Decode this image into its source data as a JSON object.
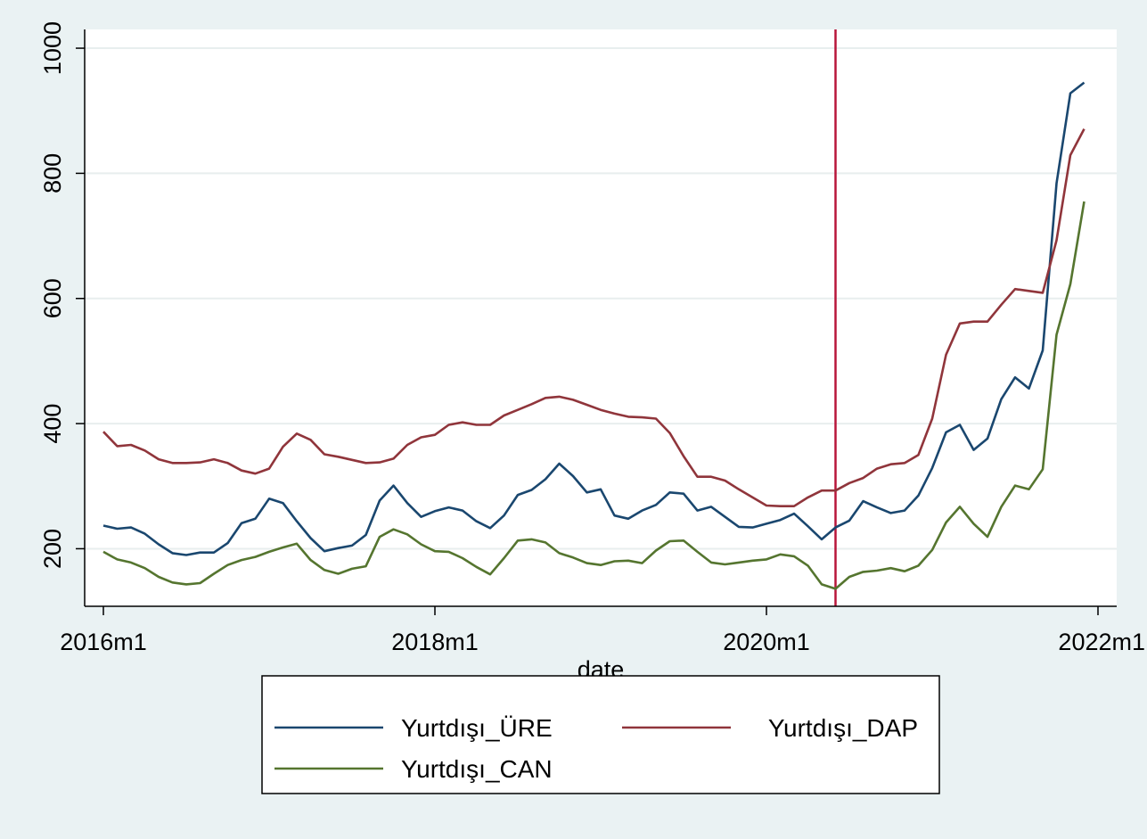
{
  "chart_data": {
    "type": "line",
    "title": "",
    "xlabel": "date",
    "ylabel": "",
    "x_tick_labels": [
      "2016m1",
      "2018m1",
      "2020m1",
      "2022m1"
    ],
    "x_ticks": [
      "2016-01",
      "2018-01",
      "2020-01",
      "2022-01"
    ],
    "x_range": [
      "2016-01",
      "2022-01"
    ],
    "y_ticks": [
      200,
      400,
      600,
      800,
      1000
    ],
    "y_tick_labels": [
      "200",
      "400",
      "600",
      "800",
      "1000"
    ],
    "ylim": [
      108,
      1030
    ],
    "grid": true,
    "legend_position": "bottom",
    "vertical_line": {
      "x": "2020-06",
      "color": "#b8163a"
    },
    "colors": {
      "background": "#eaf2f3",
      "plot_background": "#ffffff",
      "grid": "#e8eeee",
      "axis": "#000000"
    },
    "x": [
      "2016-01",
      "2016-02",
      "2016-03",
      "2016-04",
      "2016-05",
      "2016-06",
      "2016-07",
      "2016-08",
      "2016-09",
      "2016-10",
      "2016-11",
      "2016-12",
      "2017-01",
      "2017-02",
      "2017-03",
      "2017-04",
      "2017-05",
      "2017-06",
      "2017-07",
      "2017-08",
      "2017-09",
      "2017-10",
      "2017-11",
      "2017-12",
      "2018-01",
      "2018-02",
      "2018-03",
      "2018-04",
      "2018-05",
      "2018-06",
      "2018-07",
      "2018-08",
      "2018-09",
      "2018-10",
      "2018-11",
      "2018-12",
      "2019-01",
      "2019-02",
      "2019-03",
      "2019-04",
      "2019-05",
      "2019-06",
      "2019-07",
      "2019-08",
      "2019-09",
      "2019-10",
      "2019-11",
      "2019-12",
      "2020-01",
      "2020-02",
      "2020-03",
      "2020-04",
      "2020-05",
      "2020-06",
      "2020-07",
      "2020-08",
      "2020-09",
      "2020-10",
      "2020-11",
      "2020-12",
      "2021-01",
      "2021-02",
      "2021-03",
      "2021-04",
      "2021-05",
      "2021-06",
      "2021-07",
      "2021-08",
      "2021-09",
      "2021-10",
      "2021-11",
      "2021-12"
    ],
    "series": [
      {
        "name": "Yurtdışı_ÜRE",
        "color": "#1a476f",
        "values": [
          237,
          232,
          234,
          224,
          207,
          193,
          190,
          194,
          194,
          209,
          241,
          248,
          280,
          273,
          244,
          217,
          196,
          201,
          205,
          222,
          277,
          301,
          273,
          251,
          260,
          266,
          261,
          244,
          233,
          253,
          286,
          294,
          311,
          336,
          316,
          290,
          295,
          253,
          248,
          261,
          270,
          290,
          288,
          261,
          267,
          251,
          235,
          234,
          240,
          246,
          256,
          236,
          215,
          234,
          245,
          276,
          266,
          257,
          261,
          285,
          329,
          386,
          398,
          358,
          376,
          439,
          474,
          456,
          517,
          784,
          928,
          945
        ]
      },
      {
        "name": "Yurtdışı_DAP",
        "color": "#90353b",
        "values": [
          387,
          364,
          366,
          357,
          343,
          337,
          337,
          338,
          343,
          337,
          325,
          320,
          328,
          363,
          384,
          374,
          351,
          347,
          342,
          337,
          338,
          344,
          366,
          378,
          382,
          398,
          402,
          398,
          398,
          413,
          422,
          431,
          441,
          443,
          438,
          430,
          422,
          416,
          411,
          410,
          408,
          385,
          348,
          315,
          315,
          309,
          295,
          282,
          269,
          268,
          268,
          282,
          293,
          293,
          305,
          313,
          328,
          335,
          337,
          350,
          408,
          510,
          560,
          563,
          563,
          590,
          615,
          612,
          609,
          693,
          829,
          871
        ]
      },
      {
        "name": "Yurtdışı_CAN",
        "color": "#55752f",
        "values": [
          195,
          183,
          178,
          169,
          155,
          146,
          143,
          145,
          160,
          174,
          182,
          187,
          195,
          202,
          208,
          182,
          166,
          160,
          168,
          172,
          219,
          231,
          223,
          207,
          196,
          195,
          185,
          171,
          159,
          185,
          213,
          215,
          210,
          193,
          186,
          177,
          174,
          180,
          181,
          177,
          197,
          212,
          213,
          195,
          178,
          175,
          178,
          181,
          183,
          191,
          188,
          173,
          143,
          136,
          155,
          163,
          165,
          169,
          164,
          173,
          198,
          242,
          267,
          240,
          219,
          267,
          301,
          295,
          327,
          542,
          623,
          755
        ]
      }
    ]
  }
}
